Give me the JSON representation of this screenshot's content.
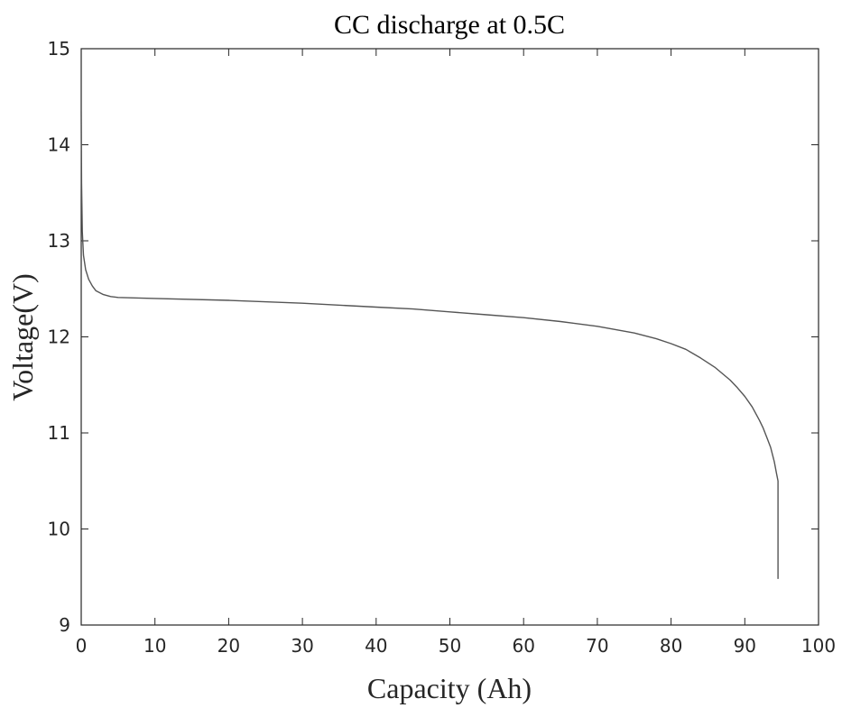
{
  "chart_data": {
    "type": "line",
    "title": "CC discharge at 0.5C",
    "xlabel": "Capacity (Ah)",
    "ylabel": "Voltage(V)",
    "xlim": [
      0,
      100
    ],
    "ylim": [
      9,
      15
    ],
    "xticks": [
      "0",
      "10",
      "20",
      "30",
      "40",
      "50",
      "60",
      "70",
      "80",
      "90",
      "100"
    ],
    "yticks": [
      "9",
      "10",
      "11",
      "12",
      "13",
      "14",
      "15"
    ],
    "grid": false,
    "box": true,
    "series": [
      {
        "color": "#555555",
        "x": [
          0,
          0.05,
          0.15,
          0.3,
          0.6,
          1,
          1.5,
          2,
          3,
          4,
          5,
          10,
          20,
          30,
          40,
          45,
          50,
          55,
          60,
          65,
          70,
          75,
          78,
          80,
          82,
          84,
          86,
          88,
          89,
          90,
          91,
          92,
          92.5,
          93,
          93.5,
          94,
          94.3,
          94.5,
          94.5,
          94.5
        ],
        "y": [
          14.35,
          13.6,
          13.1,
          12.85,
          12.7,
          12.6,
          12.53,
          12.48,
          12.44,
          12.42,
          12.41,
          12.4,
          12.38,
          12.35,
          12.31,
          12.29,
          12.26,
          12.23,
          12.2,
          12.16,
          12.11,
          12.04,
          11.98,
          11.93,
          11.87,
          11.78,
          11.68,
          11.55,
          11.47,
          11.38,
          11.27,
          11.13,
          11.05,
          10.95,
          10.85,
          10.7,
          10.58,
          10.5,
          10.0,
          9.48
        ]
      }
    ]
  }
}
